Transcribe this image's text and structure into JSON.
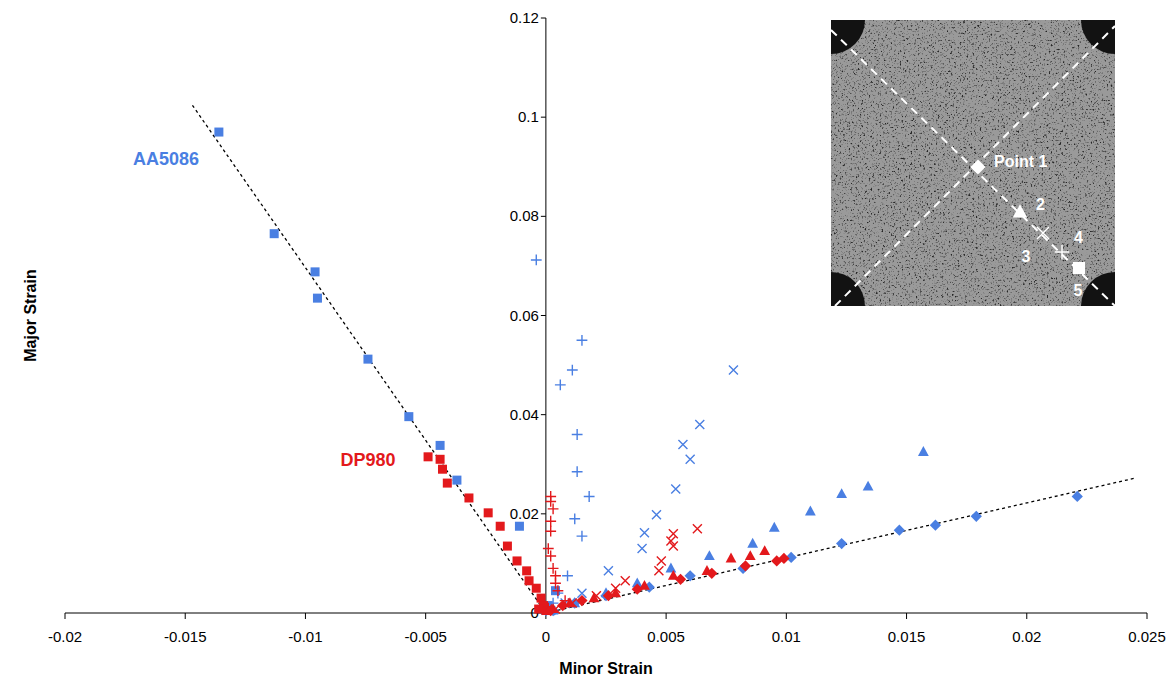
{
  "chart_data": {
    "type": "scatter",
    "x_label": "Minor Strain",
    "y_label": "Major Strain",
    "xlim": [
      -0.02,
      0.025
    ],
    "xticks": [
      -0.02,
      -0.015,
      -0.01,
      -0.005,
      0,
      0.005,
      0.01,
      0.015,
      0.02,
      0.025
    ],
    "ylim": [
      0,
      0.12
    ],
    "yticks": [
      0,
      0.02,
      0.04,
      0.06,
      0.08,
      0.1,
      0.12
    ],
    "grid": false,
    "series": [
      {
        "name": "AA5086",
        "color": "#4a7fe2",
        "marker": "square",
        "x": [
          -0.0136,
          -0.0113,
          -0.0096,
          -0.0095,
          -0.0074,
          -0.0057,
          -0.0044,
          -0.0037,
          -0.0011,
          0.0004,
          0.0001,
          0
        ],
        "values": [
          0.097,
          0.0765,
          0.0688,
          0.0635,
          0.0512,
          0.0396,
          0.0338,
          0.0268,
          0.0175,
          0.0045,
          0.0015,
          0.0005
        ]
      },
      {
        "name": "AA5086",
        "color": "#4a7fe2",
        "marker": "plus",
        "x": [
          -0.0004,
          0.0015,
          0.0006,
          0.0011,
          0.0013,
          0.0013,
          0.0018,
          0.0012,
          0.0015,
          0.0009,
          0.0005,
          0.0003,
          0
        ],
        "values": [
          0.0712,
          0.055,
          0.046,
          0.049,
          0.036,
          0.0285,
          0.0235,
          0.019,
          0.0155,
          0.0075,
          0.004,
          0.002,
          0.0005
        ]
      },
      {
        "name": "AA5086",
        "color": "#4a7fe2",
        "marker": "x",
        "x": [
          0.0078,
          0.0064,
          0.0057,
          0.006,
          0.0054,
          0.0046,
          0.0041,
          0.004,
          0.0026,
          0.0015,
          0.0008,
          0.0002
        ],
        "values": [
          0.049,
          0.038,
          0.034,
          0.031,
          0.025,
          0.0198,
          0.0162,
          0.013,
          0.0085,
          0.004,
          0.002,
          0.0005
        ]
      },
      {
        "name": "AA5086",
        "color": "#4a7fe2",
        "marker": "triangle",
        "x": [
          0.0157,
          0.0134,
          0.0123,
          0.011,
          0.0095,
          0.0086,
          0.0068,
          0.0052,
          0.0038,
          0.0025,
          0.0012,
          0.0003
        ],
        "values": [
          0.0325,
          0.0255,
          0.024,
          0.0205,
          0.0172,
          0.014,
          0.0115,
          0.009,
          0.006,
          0.004,
          0.002,
          0.0005
        ]
      },
      {
        "name": "AA5086",
        "color": "#4a7fe2",
        "marker": "diamond",
        "x": [
          0.0221,
          0.0179,
          0.0162,
          0.0147,
          0.0123,
          0.0102,
          0.0082,
          0.006,
          0.0043,
          0.0025,
          0.0012,
          0.0003
        ],
        "values": [
          0.0235,
          0.0195,
          0.0177,
          0.0167,
          0.014,
          0.0112,
          0.009,
          0.0075,
          0.0052,
          0.0035,
          0.002,
          0.0005
        ]
      },
      {
        "name": "DP980",
        "color": "#e3191c",
        "marker": "square",
        "x": [
          -0.0049,
          -0.0044,
          -0.0043,
          -0.0041,
          -0.0032,
          -0.0024,
          -0.0019,
          -0.0016,
          -0.0012,
          -0.0008,
          -0.0007,
          -0.0004,
          -0.0002,
          -0.0001,
          0,
          -0.0003
        ],
        "values": [
          0.0315,
          0.031,
          0.029,
          0.0262,
          0.0232,
          0.0202,
          0.0175,
          0.0135,
          0.0105,
          0.0085,
          0.0065,
          0.005,
          0.003,
          0.0015,
          0.0005,
          0.0008
        ]
      },
      {
        "name": "DP980",
        "color": "#e3191c",
        "marker": "plus",
        "x": [
          0.0002,
          0.0002,
          0.0003,
          0.0002,
          0.0002,
          0.0001,
          0.0002,
          0.0003,
          0.0004,
          0.0004,
          0.0005,
          0.0008,
          0.0001
        ],
        "values": [
          0.0235,
          0.0225,
          0.021,
          0.0185,
          0.0165,
          0.013,
          0.0115,
          0.009,
          0.0075,
          0.006,
          0.0045,
          0.0025,
          0.001
        ]
      },
      {
        "name": "DP980",
        "color": "#e3191c",
        "marker": "x",
        "x": [
          0.0063,
          0.0053,
          0.0052,
          0.0053,
          0.0048,
          0.0047,
          0.0033,
          0.0029,
          0.0021,
          0.0011,
          0.0004
        ],
        "values": [
          0.017,
          0.016,
          0.0145,
          0.0135,
          0.0105,
          0.0085,
          0.0065,
          0.005,
          0.0035,
          0.002,
          0.0008
        ]
      },
      {
        "name": "DP980",
        "color": "#e3191c",
        "marker": "triangle",
        "x": [
          0.0091,
          0.0085,
          0.0077,
          0.0067,
          0.0053,
          0.0041,
          0.0029,
          0.002,
          0.001,
          0.0003
        ],
        "values": [
          0.0125,
          0.0115,
          0.011,
          0.0085,
          0.0075,
          0.0055,
          0.004,
          0.003,
          0.002,
          0.0008
        ]
      },
      {
        "name": "DP980",
        "color": "#e3191c",
        "marker": "diamond",
        "x": [
          0.0099,
          0.0096,
          0.0083,
          0.0069,
          0.0056,
          0.0038,
          0.0026,
          0.0015,
          0.0007,
          0.0002
        ],
        "values": [
          0.011,
          0.0105,
          0.0095,
          0.008,
          0.0068,
          0.0048,
          0.0035,
          0.0025,
          0.0015,
          0.0005
        ]
      }
    ],
    "reference_lines": [
      {
        "x": [
          -0.0147,
          0
        ],
        "values": [
          0.1024,
          0
        ],
        "color": "#000000",
        "line_style": "dashed"
      },
      {
        "x": [
          0,
          0.0245
        ],
        "values": [
          0,
          0.0272
        ],
        "color": "#000000",
        "line_style": "dashed"
      }
    ],
    "annotations": [
      {
        "text": "AA5086",
        "x": -0.0158,
        "y": 0.0915,
        "color": "#4a7fe2"
      },
      {
        "text": "DP980",
        "x": -0.0074,
        "y": 0.0309,
        "color": "#e3191c"
      }
    ],
    "inset": {
      "labels": [
        "Point 1",
        "2",
        "3",
        "4",
        "5"
      ]
    }
  }
}
